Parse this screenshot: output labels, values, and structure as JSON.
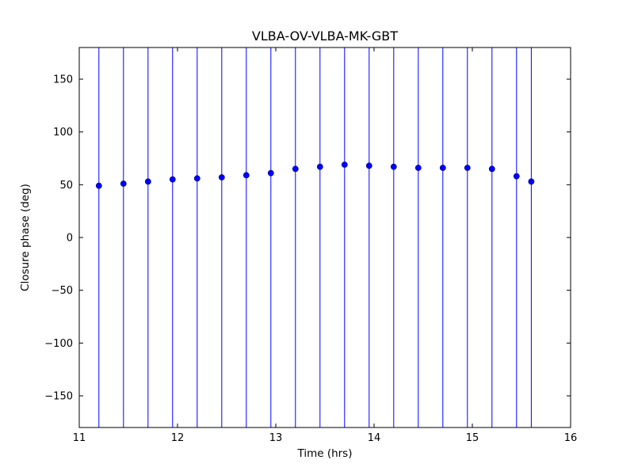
{
  "chart_data": {
    "type": "scatter",
    "title": "VLBA-OV-VLBA-MK-GBT",
    "xlabel": "Time (hrs)",
    "ylabel": "Closure phase (deg)",
    "xlim": [
      11,
      16
    ],
    "ylim": [
      -180,
      180
    ],
    "xticks": [
      11,
      12,
      13,
      14,
      15,
      16
    ],
    "yticks": [
      -150,
      -100,
      -50,
      0,
      50,
      100,
      150
    ],
    "grid": false,
    "legend": "none",
    "series": [
      {
        "name": "closure-phase",
        "color": "#0000ff",
        "marker": "circle",
        "error_bars_full_height": true,
        "x": [
          11.2,
          11.45,
          11.7,
          11.95,
          12.2,
          12.45,
          12.7,
          12.95,
          13.2,
          13.45,
          13.7,
          13.95,
          14.2,
          14.45,
          14.7,
          14.95,
          15.2,
          15.45,
          15.6
        ],
        "y": [
          49,
          51,
          53,
          55,
          56,
          57,
          59,
          61,
          65,
          67,
          69,
          68,
          67,
          66,
          66,
          66,
          65,
          58,
          53
        ]
      }
    ]
  }
}
